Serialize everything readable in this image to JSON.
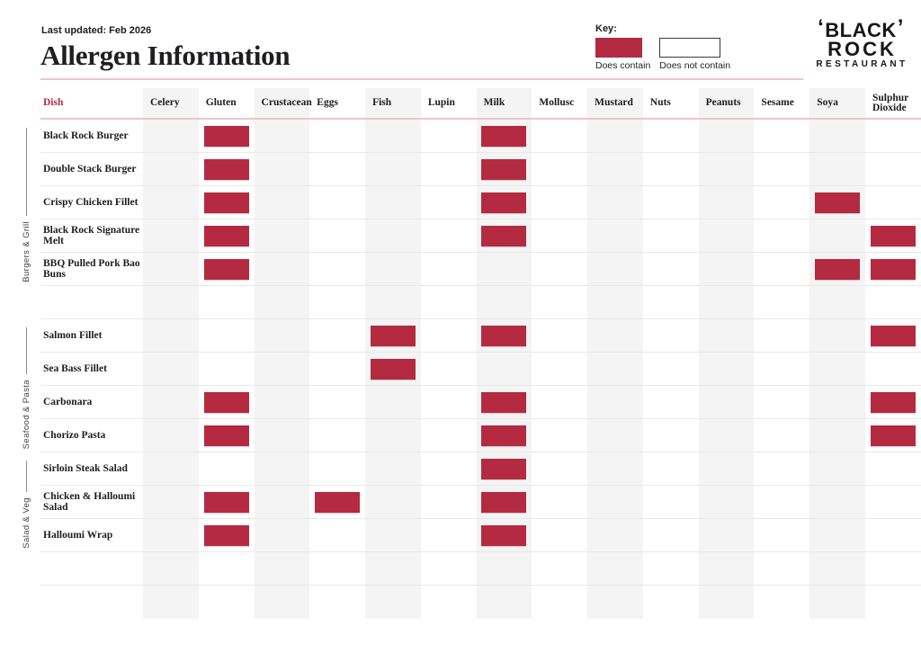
{
  "page": {
    "last_updated": "Last updated: Feb 2026",
    "title": "Allergen Information"
  },
  "key": {
    "label": "Key:",
    "contains_label": "Does contain",
    "not_contains_label": "Does not contain"
  },
  "logo": {
    "left_quote": "‘",
    "line1": "BLACK",
    "right_quote": "’",
    "line2": "ROCK",
    "line3": "RESTAURANT"
  },
  "colors": {
    "contain": "#b42a40",
    "band": "#f4f4f4",
    "accent_line": "#eec6cb"
  },
  "table": {
    "dish_header": "Dish",
    "allergens": [
      "Celery",
      "Gluten",
      "Crustacean",
      "Eggs",
      "Fish",
      "Lupin",
      "Milk",
      "Mollusc",
      "Mustard",
      "Nuts",
      "Peanuts",
      "Sesame",
      "Soya",
      "Sulphur Dioxide"
    ],
    "groups": [
      {
        "label": "Burgers & Grill"
      },
      {
        "label": "Seafood & Pasta"
      },
      {
        "label": "Salad & Veg"
      }
    ],
    "rows": [
      {
        "dish": "Black Rock Burger",
        "group": 0,
        "contains": [
          "Gluten",
          "Milk"
        ]
      },
      {
        "dish": "Double Stack Burger",
        "group": 0,
        "contains": [
          "Gluten",
          "Milk"
        ]
      },
      {
        "dish": "Crispy Chicken Fillet",
        "group": 0,
        "contains": [
          "Gluten",
          "Milk",
          "Soya"
        ]
      },
      {
        "dish": "Black Rock Signature Melt",
        "group": 0,
        "contains": [
          "Gluten",
          "Milk",
          "Sulphur Dioxide"
        ]
      },
      {
        "dish": "BBQ Pulled Pork Bao Buns",
        "group": 0,
        "contains": [
          "Gluten",
          "Soya",
          "Sulphur Dioxide"
        ]
      },
      {
        "dish": "",
        "group": null,
        "contains": []
      },
      {
        "dish": "Salmon Fillet",
        "group": 1,
        "contains": [
          "Fish",
          "Milk",
          "Sulphur Dioxide"
        ]
      },
      {
        "dish": "Sea Bass Fillet",
        "group": 1,
        "contains": [
          "Fish"
        ]
      },
      {
        "dish": "Carbonara",
        "group": 1,
        "contains": [
          "Gluten",
          "Milk",
          "Sulphur Dioxide"
        ]
      },
      {
        "dish": "Chorizo Pasta",
        "group": 1,
        "contains": [
          "Gluten",
          "Milk",
          "Sulphur Dioxide"
        ]
      },
      {
        "dish": "Sirloin Steak Salad",
        "group": 2,
        "contains": [
          "Milk"
        ]
      },
      {
        "dish": "Chicken & Halloumi Salad",
        "group": 2,
        "contains": [
          "Gluten",
          "Eggs",
          "Milk"
        ]
      },
      {
        "dish": "Halloumi Wrap",
        "group": 2,
        "contains": [
          "Gluten",
          "Milk"
        ]
      },
      {
        "dish": "",
        "group": null,
        "contains": []
      },
      {
        "dish": "",
        "group": null,
        "contains": []
      }
    ]
  }
}
